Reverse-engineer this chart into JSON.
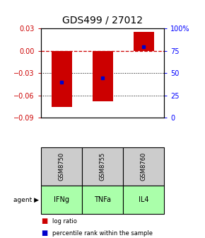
{
  "title": "GDS499 / 27012",
  "samples": [
    "GSM8750",
    "GSM8755",
    "GSM8760"
  ],
  "agents": [
    "IFNg",
    "TNFa",
    "IL4"
  ],
  "log_ratios": [
    -0.075,
    -0.068,
    0.026
  ],
  "percentile_ranks": [
    0.4,
    0.45,
    0.8
  ],
  "ylim_left": [
    -0.09,
    0.03
  ],
  "yticks_left": [
    0.03,
    0.0,
    -0.03,
    -0.06,
    -0.09
  ],
  "ytick_labels_right": [
    "100%",
    "75",
    "50",
    "25",
    "0"
  ],
  "bar_color": "#cc0000",
  "dot_color": "#0000cc",
  "agent_color": "#aaffaa",
  "sample_bg_color": "#cccccc",
  "zero_line_color": "#cc0000",
  "grid_color": "#000000",
  "bar_width": 0.5,
  "title_fontsize": 10,
  "tick_fontsize": 7,
  "legend_fontsize": 6.5
}
